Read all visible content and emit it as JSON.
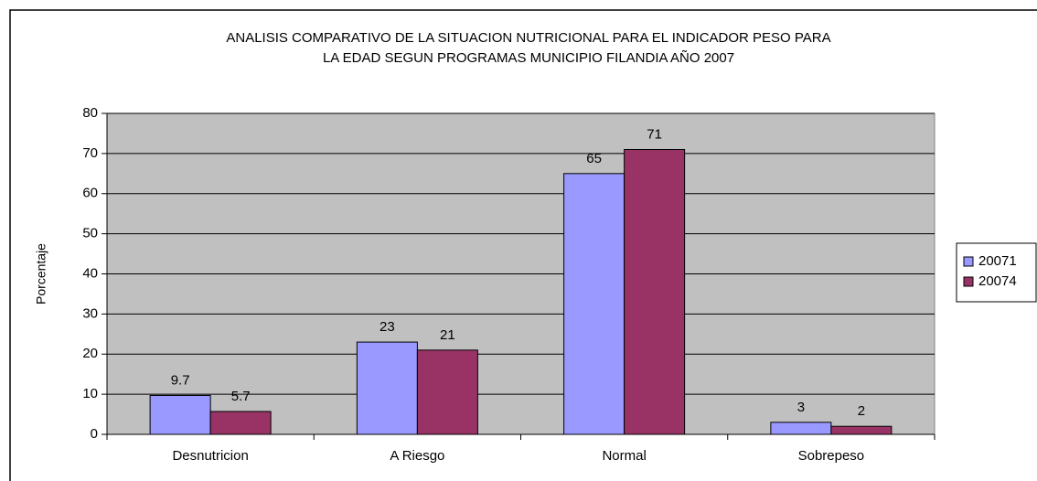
{
  "chart_data": {
    "type": "bar",
    "title": [
      "ANALISIS COMPARATIVO DE LA SITUACION NUTRICIONAL PARA EL INDICADOR PESO PARA",
      "LA EDAD SEGUN PROGRAMAS MUNICIPIO FILANDIA AÑO 2007"
    ],
    "y_label": "Porcentaje",
    "categories": [
      "Desnutricion",
      "A Riesgo",
      "Normal",
      "Sobrepeso"
    ],
    "series": [
      {
        "name": "20071",
        "color": "#9999ff",
        "values": [
          9.7,
          23,
          65,
          3
        ]
      },
      {
        "name": "20074",
        "color": "#993366",
        "values": [
          5.7,
          21,
          71,
          2
        ]
      }
    ],
    "ylim": [
      0,
      80
    ],
    "yticks": [
      0,
      10,
      20,
      30,
      40,
      50,
      60,
      70,
      80
    ],
    "grid": true,
    "plot_background": "#c0c0c0",
    "legend": "right"
  }
}
